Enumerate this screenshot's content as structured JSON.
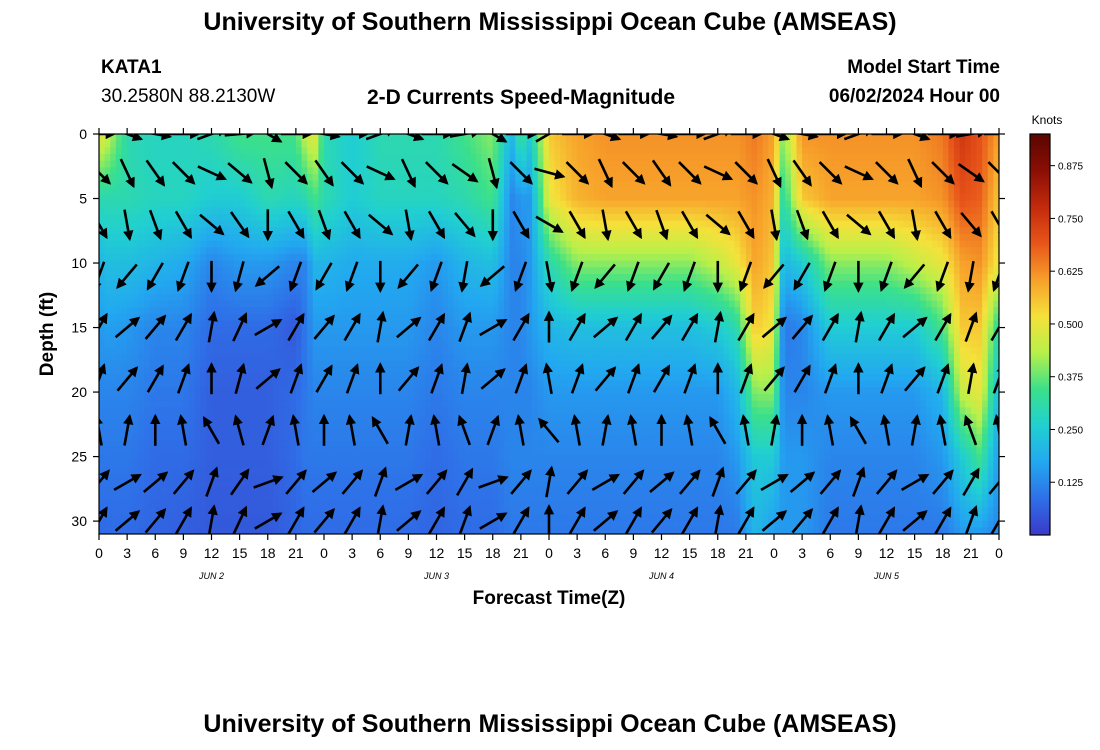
{
  "header": {
    "title": "University of Southern Mississippi Ocean Cube (AMSEAS)",
    "station": "KATA1",
    "coords": "30.2580N  88.2130W",
    "chart_title": "2-D Currents Speed-Magnitude",
    "model_label": "Model Start Time",
    "model_time": "06/02/2024 Hour 00"
  },
  "footer": {
    "title": "University of Southern Mississippi Ocean Cube (AMSEAS)"
  },
  "colorbar": {
    "unit": "Knots",
    "ticks": [
      "0.125",
      "0.250",
      "0.375",
      "0.500",
      "0.625",
      "0.750",
      "0.875"
    ],
    "min": 0.0,
    "max": 0.95,
    "colors": [
      "#3a3ac8",
      "#2f6fe8",
      "#22a8f0",
      "#21d0d0",
      "#3be08a",
      "#b8f04a",
      "#f5e13a",
      "#f7a02a",
      "#e8551a",
      "#c32a0c",
      "#8a0e05",
      "#5a0600"
    ]
  },
  "chart_data": {
    "type": "heatmap",
    "xlabel": "Forecast Time(Z)",
    "ylabel": "Depth (ft)",
    "x_tick_labels": [
      "0",
      "3",
      "6",
      "9",
      "12",
      "15",
      "18",
      "21",
      "0",
      "3",
      "6",
      "9",
      "12",
      "15",
      "18",
      "21",
      "0",
      "3",
      "6",
      "9",
      "12",
      "15",
      "18",
      "21",
      "0",
      "3",
      "6",
      "9",
      "12",
      "15",
      "18",
      "21",
      "0"
    ],
    "x_range_hours": [
      0,
      96
    ],
    "day_labels": [
      {
        "label": "JUN 2",
        "hour": 12
      },
      {
        "label": "JUN 3",
        "hour": 36
      },
      {
        "label": "JUN 4",
        "hour": 60
      },
      {
        "label": "JUN 5",
        "hour": 84
      }
    ],
    "y_ticks": [
      0,
      5,
      10,
      15,
      20,
      25,
      30
    ],
    "y_range": [
      0,
      31
    ],
    "y_inverted": true,
    "value_units": "Knots",
    "speed_anchor_hours": [
      0,
      1,
      3,
      6,
      9,
      12,
      15,
      18,
      21,
      22,
      23,
      24,
      27,
      30,
      33,
      36,
      39,
      42,
      44,
      45,
      46,
      48,
      51,
      54,
      57,
      60,
      63,
      66,
      68,
      70,
      72,
      73,
      75,
      78,
      81,
      84,
      87,
      90,
      92,
      94,
      96
    ],
    "speed_depths": [
      0,
      5,
      10,
      15,
      20,
      25,
      31
    ],
    "speed_grid": [
      [
        0.5,
        0.3,
        0.2,
        0.15,
        0.12,
        0.1,
        0.08
      ],
      [
        0.45,
        0.3,
        0.22,
        0.16,
        0.12,
        0.1,
        0.08
      ],
      [
        0.3,
        0.3,
        0.22,
        0.15,
        0.12,
        0.1,
        0.08
      ],
      [
        0.28,
        0.28,
        0.2,
        0.12,
        0.1,
        0.08,
        0.07
      ],
      [
        0.28,
        0.28,
        0.18,
        0.12,
        0.1,
        0.08,
        0.06
      ],
      [
        0.3,
        0.25,
        0.12,
        0.08,
        0.06,
        0.06,
        0.05
      ],
      [
        0.35,
        0.25,
        0.15,
        0.08,
        0.06,
        0.06,
        0.05
      ],
      [
        0.35,
        0.3,
        0.15,
        0.08,
        0.06,
        0.06,
        0.05
      ],
      [
        0.35,
        0.28,
        0.12,
        0.05,
        0.08,
        0.08,
        0.07
      ],
      [
        0.45,
        0.3,
        0.12,
        0.1,
        0.1,
        0.1,
        0.08
      ],
      [
        0.5,
        0.35,
        0.2,
        0.15,
        0.12,
        0.1,
        0.08
      ],
      [
        0.3,
        0.3,
        0.2,
        0.15,
        0.12,
        0.1,
        0.08
      ],
      [
        0.25,
        0.25,
        0.18,
        0.15,
        0.12,
        0.1,
        0.08
      ],
      [
        0.3,
        0.28,
        0.18,
        0.15,
        0.12,
        0.1,
        0.08
      ],
      [
        0.3,
        0.28,
        0.18,
        0.15,
        0.12,
        0.1,
        0.08
      ],
      [
        0.3,
        0.28,
        0.15,
        0.12,
        0.1,
        0.08,
        0.07
      ],
      [
        0.35,
        0.3,
        0.2,
        0.15,
        0.12,
        0.1,
        0.08
      ],
      [
        0.4,
        0.35,
        0.22,
        0.15,
        0.12,
        0.1,
        0.08
      ],
      [
        0.2,
        0.12,
        0.12,
        0.12,
        0.12,
        0.12,
        0.1
      ],
      [
        0.35,
        0.15,
        0.12,
        0.12,
        0.12,
        0.12,
        0.1
      ],
      [
        0.25,
        0.15,
        0.15,
        0.15,
        0.12,
        0.12,
        0.1
      ],
      [
        0.55,
        0.5,
        0.3,
        0.2,
        0.15,
        0.12,
        0.1
      ],
      [
        0.6,
        0.58,
        0.4,
        0.22,
        0.15,
        0.12,
        0.1
      ],
      [
        0.62,
        0.6,
        0.4,
        0.22,
        0.15,
        0.12,
        0.1
      ],
      [
        0.62,
        0.6,
        0.4,
        0.22,
        0.15,
        0.12,
        0.1
      ],
      [
        0.62,
        0.6,
        0.4,
        0.22,
        0.15,
        0.12,
        0.1
      ],
      [
        0.62,
        0.6,
        0.4,
        0.22,
        0.15,
        0.12,
        0.1
      ],
      [
        0.62,
        0.6,
        0.45,
        0.25,
        0.15,
        0.12,
        0.1
      ],
      [
        0.62,
        0.6,
        0.5,
        0.3,
        0.2,
        0.15,
        0.1
      ],
      [
        0.65,
        0.62,
        0.6,
        0.55,
        0.4,
        0.25,
        0.2
      ],
      [
        0.6,
        0.58,
        0.55,
        0.5,
        0.4,
        0.25,
        0.15
      ],
      [
        0.4,
        0.3,
        0.2,
        0.1,
        0.12,
        0.15,
        0.15
      ],
      [
        0.62,
        0.55,
        0.25,
        0.12,
        0.12,
        0.15,
        0.15
      ],
      [
        0.62,
        0.6,
        0.4,
        0.25,
        0.15,
        0.12,
        0.1
      ],
      [
        0.62,
        0.6,
        0.4,
        0.25,
        0.15,
        0.12,
        0.1
      ],
      [
        0.62,
        0.6,
        0.4,
        0.25,
        0.15,
        0.12,
        0.1
      ],
      [
        0.62,
        0.6,
        0.45,
        0.25,
        0.15,
        0.12,
        0.1
      ],
      [
        0.65,
        0.62,
        0.5,
        0.35,
        0.2,
        0.15,
        0.1
      ],
      [
        0.75,
        0.7,
        0.6,
        0.55,
        0.45,
        0.25,
        0.15
      ],
      [
        0.7,
        0.68,
        0.62,
        0.55,
        0.5,
        0.35,
        0.15
      ],
      [
        0.6,
        0.55,
        0.5,
        0.3,
        0.2,
        0.15,
        0.12
      ]
    ],
    "arrow_hours": [
      0,
      3,
      6,
      9,
      12,
      15,
      18,
      21,
      24,
      27,
      30,
      33,
      36,
      39,
      42,
      45,
      48,
      51,
      54,
      57,
      60,
      63,
      66,
      69,
      72,
      75,
      78,
      81,
      84,
      87,
      90,
      93,
      96
    ],
    "arrow_depths": [
      0,
      3,
      7,
      11,
      15,
      19,
      23,
      27,
      30
    ],
    "arrow_direction_deg_by_depth": [
      90,
      135,
      150,
      200,
      30,
      20,
      350,
      40,
      30
    ],
    "arrow_direction_variation_by_time": [
      0,
      20,
      10,
      0,
      -20,
      -5,
      30,
      0,
      10,
      0,
      -20,
      20,
      0,
      -10,
      30,
      0,
      -30,
      0,
      20,
      0,
      10,
      0,
      -20,
      0,
      20,
      10,
      0,
      -20,
      0,
      20,
      0,
      -10,
      0
    ]
  }
}
